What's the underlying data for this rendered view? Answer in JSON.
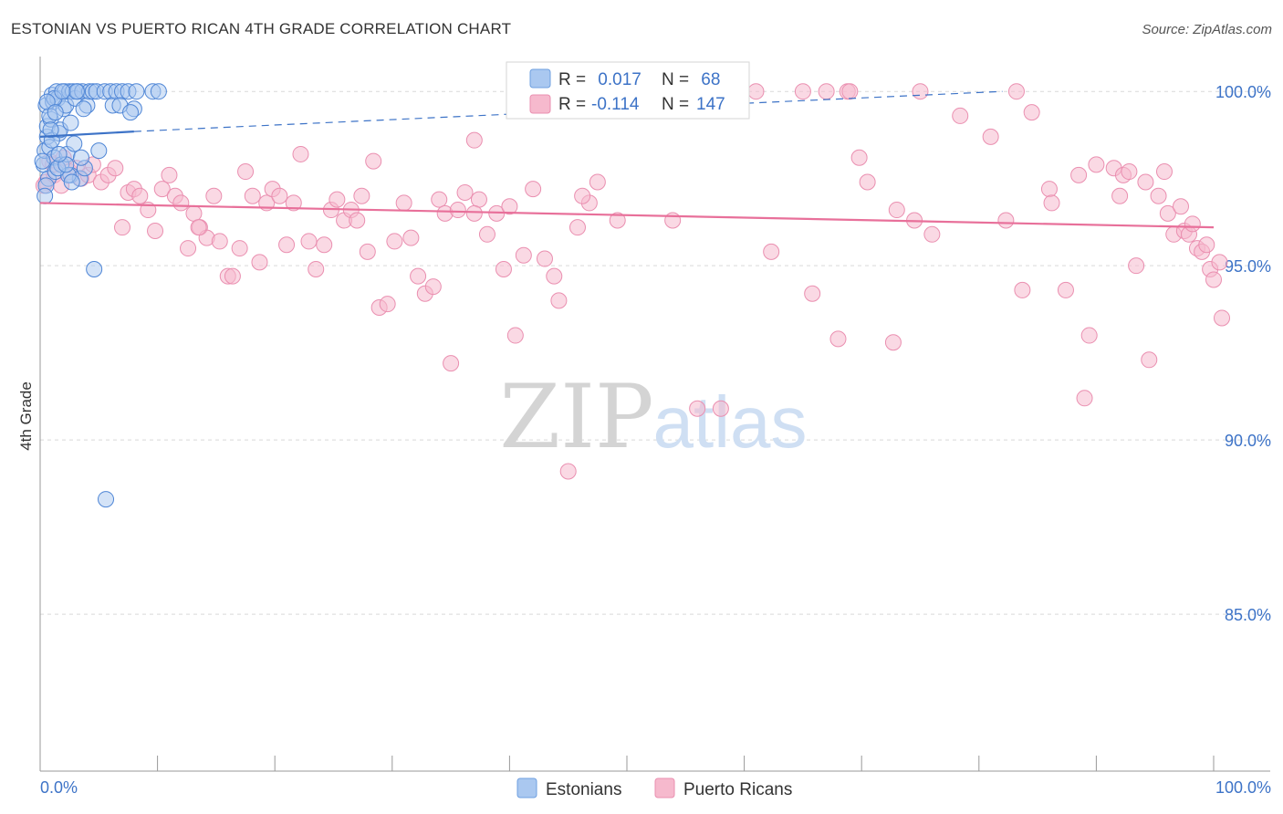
{
  "title": "ESTONIAN VS PUERTO RICAN 4TH GRADE CORRELATION CHART",
  "source": "Source: ZipAtlas.com",
  "watermark": {
    "zip": "ZIP",
    "atlas": "atlas"
  },
  "colors": {
    "estonians": "#3d73c7",
    "estonians_fill": "#aac8f0",
    "puerto_ricans": "#e8709a",
    "puerto_ricans_fill": "#f6b9cd",
    "tick_label": "#3d73c7",
    "grid": "#d9d9d9"
  },
  "legend": {
    "rows": [
      {
        "r_label": "R =",
        "r_value": " 0.017",
        "n_label": "N =",
        "n_value": " 68"
      },
      {
        "r_label": "R =",
        "r_value": "-0.114",
        "n_label": "N =",
        "n_value": "147"
      }
    ]
  },
  "bottom_legend": [
    "Estonians",
    "Puerto Ricans"
  ],
  "chart_data": {
    "type": "scatter",
    "title": "ESTONIAN VS PUERTO RICAN 4TH GRADE CORRELATION CHART",
    "xlabel": "",
    "ylabel": "4th Grade",
    "xlim": [
      0,
      100
    ],
    "ylim": [
      80.5,
      101
    ],
    "x_tick_labels": [
      "0.0%",
      "100.0%"
    ],
    "y_ticks": [
      85,
      90,
      95,
      100
    ],
    "y_tick_labels": [
      "85.0%",
      "90.0%",
      "95.0%",
      "100.0%"
    ],
    "grid": true,
    "series": [
      {
        "name": "Estonians",
        "R": 0.017,
        "N": 68,
        "trend": {
          "x": [
            0,
            8
          ],
          "y": [
            98.7,
            98.85
          ],
          "dashed_to": [
            82,
            100.0
          ]
        },
        "points": [
          [
            0.3,
            97.9
          ],
          [
            0.4,
            98.3
          ],
          [
            0.5,
            99.6
          ],
          [
            0.6,
            98.7
          ],
          [
            0.6,
            99.0
          ],
          [
            0.7,
            97.5
          ],
          [
            0.8,
            98.4
          ],
          [
            0.9,
            99.2
          ],
          [
            1.0,
            99.9
          ],
          [
            1.1,
            99.7
          ],
          [
            1.2,
            98.1
          ],
          [
            1.3,
            97.7
          ],
          [
            1.4,
            100.0
          ],
          [
            1.5,
            99.8
          ],
          [
            1.6,
            98.8
          ],
          [
            1.8,
            97.9
          ],
          [
            2.0,
            99.5
          ],
          [
            2.1,
            100.0
          ],
          [
            2.2,
            99.6
          ],
          [
            2.3,
            98.2
          ],
          [
            2.5,
            100.0
          ],
          [
            2.6,
            97.6
          ],
          [
            2.8,
            100.0
          ],
          [
            3.0,
            99.8
          ],
          [
            3.2,
            100.0
          ],
          [
            3.4,
            97.5
          ],
          [
            3.6,
            100.0
          ],
          [
            3.8,
            97.8
          ],
          [
            4.0,
            99.6
          ],
          [
            4.2,
            100.0
          ],
          [
            4.5,
            100.0
          ],
          [
            4.8,
            100.0
          ],
          [
            5.0,
            98.3
          ],
          [
            5.5,
            100.0
          ],
          [
            6.0,
            100.0
          ],
          [
            6.2,
            99.6
          ],
          [
            6.5,
            100.0
          ],
          [
            7.0,
            100.0
          ],
          [
            7.5,
            100.0
          ],
          [
            8.0,
            99.5
          ],
          [
            8.2,
            100.0
          ],
          [
            0.5,
            97.3
          ],
          [
            1.0,
            98.6
          ],
          [
            1.7,
            98.9
          ],
          [
            2.4,
            97.6
          ],
          [
            0.8,
            99.3
          ],
          [
            1.2,
            99.8
          ],
          [
            3.1,
            100.0
          ],
          [
            2.7,
            97.4
          ],
          [
            0.4,
            97.0
          ],
          [
            1.9,
            100.0
          ],
          [
            4.6,
            94.9
          ],
          [
            5.6,
            88.3
          ],
          [
            9.6,
            100.0
          ],
          [
            10.1,
            100.0
          ],
          [
            3.7,
            99.5
          ],
          [
            6.8,
            99.6
          ],
          [
            7.7,
            99.4
          ],
          [
            0.2,
            98.0
          ],
          [
            1.5,
            97.8
          ],
          [
            2.9,
            98.5
          ],
          [
            0.6,
            99.7
          ],
          [
            1.3,
            99.4
          ],
          [
            2.2,
            97.9
          ],
          [
            3.5,
            98.1
          ],
          [
            0.9,
            98.9
          ],
          [
            1.6,
            98.2
          ],
          [
            2.6,
            99.1
          ]
        ]
      },
      {
        "name": "Puerto Ricans",
        "R": -0.114,
        "N": 147,
        "trend": {
          "x": [
            0,
            100
          ],
          "y": [
            96.8,
            96.1
          ]
        },
        "points": [
          [
            0.5,
            97.4
          ],
          [
            0.8,
            98.0
          ],
          [
            1.2,
            97.6
          ],
          [
            1.8,
            97.3
          ],
          [
            2.0,
            98.1
          ],
          [
            2.5,
            97.7
          ],
          [
            3.1,
            97.8
          ],
          [
            3.5,
            97.5
          ],
          [
            4.1,
            97.6
          ],
          [
            4.5,
            97.9
          ],
          [
            5.2,
            97.4
          ],
          [
            5.8,
            97.6
          ],
          [
            6.4,
            97.8
          ],
          [
            7.0,
            96.1
          ],
          [
            7.5,
            97.1
          ],
          [
            8.0,
            97.2
          ],
          [
            8.5,
            97.0
          ],
          [
            9.2,
            96.6
          ],
          [
            9.8,
            96.0
          ],
          [
            10.4,
            97.2
          ],
          [
            11.0,
            97.6
          ],
          [
            11.5,
            97.0
          ],
          [
            12.0,
            96.8
          ],
          [
            12.6,
            95.5
          ],
          [
            13.1,
            96.5
          ],
          [
            13.6,
            96.1
          ],
          [
            14.2,
            95.8
          ],
          [
            14.8,
            97.0
          ],
          [
            15.3,
            95.7
          ],
          [
            16.0,
            94.7
          ],
          [
            16.4,
            94.7
          ],
          [
            17.0,
            95.5
          ],
          [
            17.5,
            97.7
          ],
          [
            18.1,
            97.0
          ],
          [
            18.7,
            95.1
          ],
          [
            19.3,
            96.8
          ],
          [
            19.8,
            97.2
          ],
          [
            20.4,
            97.0
          ],
          [
            21.0,
            95.6
          ],
          [
            21.6,
            96.8
          ],
          [
            22.2,
            98.2
          ],
          [
            22.9,
            95.7
          ],
          [
            23.5,
            94.9
          ],
          [
            24.2,
            95.6
          ],
          [
            24.8,
            96.6
          ],
          [
            25.3,
            96.9
          ],
          [
            25.9,
            96.3
          ],
          [
            26.5,
            96.6
          ],
          [
            27.4,
            97.0
          ],
          [
            27.9,
            95.4
          ],
          [
            28.4,
            98.0
          ],
          [
            28.9,
            93.8
          ],
          [
            29.6,
            93.9
          ],
          [
            30.2,
            95.7
          ],
          [
            31.0,
            96.8
          ],
          [
            31.6,
            95.8
          ],
          [
            32.2,
            94.7
          ],
          [
            32.8,
            94.2
          ],
          [
            33.5,
            94.4
          ],
          [
            34.0,
            96.9
          ],
          [
            34.5,
            96.5
          ],
          [
            35.0,
            92.2
          ],
          [
            35.6,
            96.6
          ],
          [
            36.2,
            97.1
          ],
          [
            37.0,
            98.6
          ],
          [
            37.4,
            96.9
          ],
          [
            38.1,
            95.9
          ],
          [
            38.9,
            96.5
          ],
          [
            39.5,
            94.9
          ],
          [
            40.0,
            96.7
          ],
          [
            40.5,
            93.0
          ],
          [
            41.2,
            95.3
          ],
          [
            42.0,
            97.2
          ],
          [
            43.0,
            95.2
          ],
          [
            43.8,
            94.7
          ],
          [
            44.2,
            94.0
          ],
          [
            45.0,
            89.1
          ],
          [
            45.8,
            96.1
          ],
          [
            46.8,
            96.8
          ],
          [
            47.5,
            97.4
          ],
          [
            48.8,
            100.0
          ],
          [
            49.2,
            96.3
          ],
          [
            50.4,
            100.0
          ],
          [
            51.0,
            100.0
          ],
          [
            53.0,
            100.0
          ],
          [
            56.0,
            90.9
          ],
          [
            58.0,
            90.9
          ],
          [
            59.5,
            100.0
          ],
          [
            61.0,
            100.0
          ],
          [
            62.3,
            95.4
          ],
          [
            65.0,
            100.0
          ],
          [
            65.8,
            94.2
          ],
          [
            67.0,
            100.0
          ],
          [
            68.0,
            92.9
          ],
          [
            68.8,
            100.0
          ],
          [
            69.0,
            100.0
          ],
          [
            69.8,
            98.1
          ],
          [
            70.5,
            97.4
          ],
          [
            72.7,
            92.8
          ],
          [
            73.0,
            96.6
          ],
          [
            74.5,
            96.3
          ],
          [
            75.0,
            100.0
          ],
          [
            76.0,
            95.9
          ],
          [
            78.4,
            99.3
          ],
          [
            81.0,
            98.7
          ],
          [
            82.3,
            96.3
          ],
          [
            83.2,
            100.0
          ],
          [
            83.7,
            94.3
          ],
          [
            84.5,
            99.4
          ],
          [
            86.0,
            97.2
          ],
          [
            86.2,
            96.8
          ],
          [
            87.4,
            94.3
          ],
          [
            88.5,
            97.6
          ],
          [
            89.0,
            91.2
          ],
          [
            89.4,
            93.0
          ],
          [
            90.0,
            97.9
          ],
          [
            91.5,
            97.8
          ],
          [
            92.0,
            97.0
          ],
          [
            92.3,
            97.6
          ],
          [
            92.8,
            97.7
          ],
          [
            93.4,
            95.0
          ],
          [
            94.2,
            97.4
          ],
          [
            94.5,
            92.3
          ],
          [
            95.3,
            97.0
          ],
          [
            95.8,
            97.7
          ],
          [
            96.1,
            96.5
          ],
          [
            96.6,
            95.9
          ],
          [
            97.2,
            96.7
          ],
          [
            97.5,
            96.0
          ],
          [
            97.9,
            95.9
          ],
          [
            98.2,
            96.2
          ],
          [
            98.6,
            95.5
          ],
          [
            99.0,
            95.4
          ],
          [
            99.4,
            95.6
          ],
          [
            99.7,
            94.9
          ],
          [
            100.0,
            94.6
          ],
          [
            100.7,
            93.5
          ],
          [
            100.5,
            95.1
          ],
          [
            27.0,
            96.3
          ],
          [
            13.5,
            96.1
          ],
          [
            37.0,
            96.5
          ],
          [
            46.2,
            97.0
          ],
          [
            53.9,
            96.3
          ],
          [
            0.3,
            97.3
          ],
          [
            1.1,
            97.9
          ]
        ]
      }
    ]
  }
}
